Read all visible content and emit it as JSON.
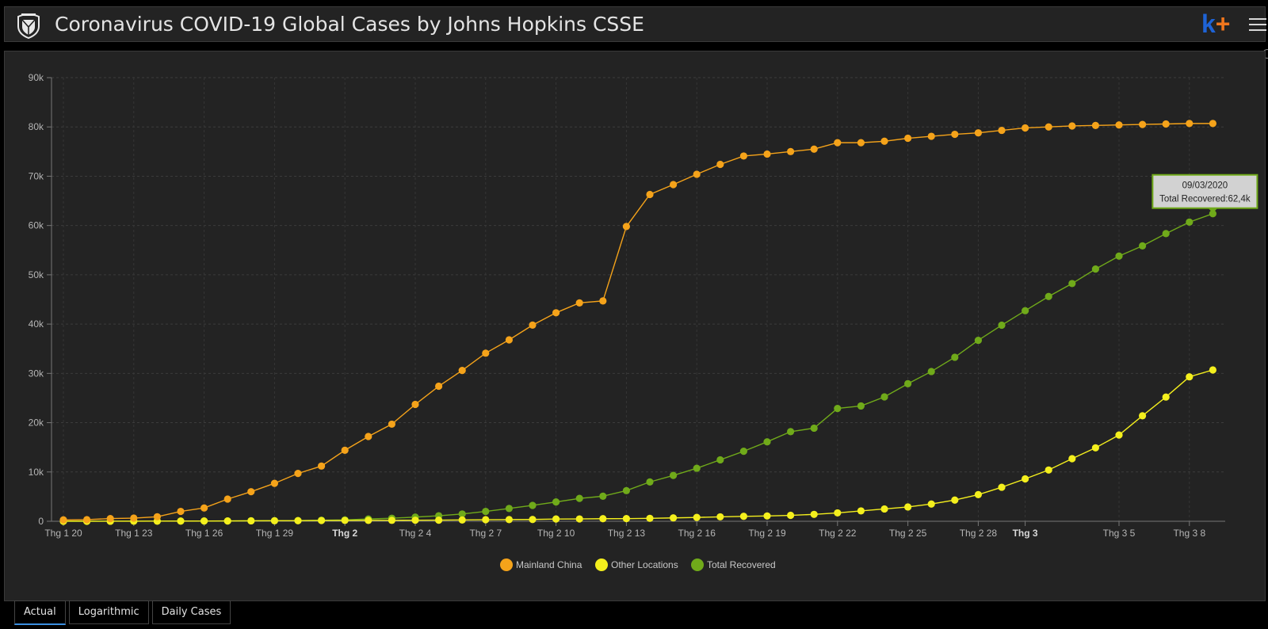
{
  "header": {
    "title": "Coronavirus COVID-19 Global Cases by Johns Hopkins CSSE",
    "brand_k": "k",
    "brand_plus": "+"
  },
  "tabs": [
    {
      "label": "Actual",
      "active": true
    },
    {
      "label": "Logarithmic",
      "active": false
    },
    {
      "label": "Daily Cases",
      "active": false
    }
  ],
  "tooltip": {
    "date": "09/03/2020",
    "text": "Total Recovered:62,4k"
  },
  "colors": {
    "mainland_china": "#f5a31a",
    "other_locations": "#f4ef1d",
    "total_recovered": "#70aa1a",
    "background": "#232323"
  },
  "chart_data": {
    "type": "line",
    "title": "",
    "xlabel": "",
    "ylabel": "",
    "ylim": [
      0,
      90000
    ],
    "yticks": [
      0,
      10000,
      20000,
      30000,
      40000,
      50000,
      60000,
      70000,
      80000,
      90000
    ],
    "ytick_labels": [
      "0",
      "10k",
      "20k",
      "30k",
      "40k",
      "50k",
      "60k",
      "70k",
      "80k",
      "90k"
    ],
    "x": [
      "2020-01-20",
      "2020-01-21",
      "2020-01-22",
      "2020-01-23",
      "2020-01-24",
      "2020-01-25",
      "2020-01-26",
      "2020-01-27",
      "2020-01-28",
      "2020-01-29",
      "2020-01-30",
      "2020-01-31",
      "2020-02-01",
      "2020-02-02",
      "2020-02-03",
      "2020-02-04",
      "2020-02-05",
      "2020-02-06",
      "2020-02-07",
      "2020-02-08",
      "2020-02-09",
      "2020-02-10",
      "2020-02-11",
      "2020-02-12",
      "2020-02-13",
      "2020-02-14",
      "2020-02-15",
      "2020-02-16",
      "2020-02-17",
      "2020-02-18",
      "2020-02-19",
      "2020-02-20",
      "2020-02-21",
      "2020-02-22",
      "2020-02-23",
      "2020-02-24",
      "2020-02-25",
      "2020-02-26",
      "2020-02-27",
      "2020-02-28",
      "2020-02-29",
      "2020-03-01",
      "2020-03-02",
      "2020-03-03",
      "2020-03-04",
      "2020-03-05",
      "2020-03-06",
      "2020-03-07",
      "2020-03-08",
      "2020-03-09"
    ],
    "xticks": [
      {
        "index": 0,
        "label": "Thg 1 20",
        "bold": false
      },
      {
        "index": 3,
        "label": "Thg 1 23",
        "bold": false
      },
      {
        "index": 6,
        "label": "Thg 1 26",
        "bold": false
      },
      {
        "index": 9,
        "label": "Thg 1 29",
        "bold": false
      },
      {
        "index": 12,
        "label": "Thg 2",
        "bold": true
      },
      {
        "index": 15,
        "label": "Thg 2 4",
        "bold": false
      },
      {
        "index": 18,
        "label": "Thg 2 7",
        "bold": false
      },
      {
        "index": 21,
        "label": "Thg 2 10",
        "bold": false
      },
      {
        "index": 24,
        "label": "Thg 2 13",
        "bold": false
      },
      {
        "index": 27,
        "label": "Thg 2 16",
        "bold": false
      },
      {
        "index": 30,
        "label": "Thg 2 19",
        "bold": false
      },
      {
        "index": 33,
        "label": "Thg 2 22",
        "bold": false
      },
      {
        "index": 36,
        "label": "Thg 2 25",
        "bold": false
      },
      {
        "index": 39,
        "label": "Thg 2 28",
        "bold": false
      },
      {
        "index": 41,
        "label": "Thg 3",
        "bold": true
      },
      {
        "index": 45,
        "label": "Thg 3 5",
        "bold": false
      },
      {
        "index": 48,
        "label": "Thg 3 8",
        "bold": false
      }
    ],
    "grid": true,
    "legend_position": "bottom-center",
    "series": [
      {
        "name": "Mainland China",
        "color": "#f5a31a",
        "values": [
          278,
          326,
          547,
          639,
          916,
          2000,
          2700,
          4500,
          6000,
          7700,
          9700,
          11200,
          14400,
          17200,
          19700,
          23700,
          27400,
          30600,
          34100,
          36800,
          39800,
          42300,
          44300,
          44700,
          59800,
          66300,
          68300,
          70400,
          72400,
          74100,
          74500,
          75000,
          75500,
          76800,
          76800,
          77100,
          77700,
          78100,
          78500,
          78800,
          79300,
          79800,
          80000,
          80200,
          80300,
          80400,
          80500,
          80600,
          80700,
          80700
        ]
      },
      {
        "name": "Other Locations",
        "color": "#f4ef1d",
        "values": [
          4,
          6,
          8,
          14,
          25,
          40,
          57,
          64,
          87,
          105,
          118,
          153,
          173,
          183,
          188,
          212,
          227,
          265,
          317,
          343,
          361,
          457,
          476,
          523,
          538,
          595,
          685,
          780,
          896,
          999,
          1076,
          1200,
          1400,
          1700,
          2100,
          2500,
          2900,
          3500,
          4300,
          5400,
          6900,
          8600,
          10400,
          12700,
          14900,
          17500,
          21400,
          25200,
          29300,
          30700
        ]
      },
      {
        "name": "Total Recovered",
        "color": "#70aa1a",
        "values": [
          0,
          0,
          28,
          30,
          36,
          39,
          49,
          58,
          101,
          120,
          135,
          214,
          275,
          463,
          614,
          843,
          1115,
          1477,
          1999,
          2596,
          3219,
          3918,
          4636,
          5082,
          6217,
          7977,
          9298,
          10755,
          12462,
          14206,
          16121,
          18177,
          18890,
          22886,
          23394,
          25227,
          27905,
          30384,
          33277,
          36711,
          39782,
          42716,
          45602,
          48228,
          51170,
          53796,
          55865,
          58359,
          60694,
          62400
        ]
      }
    ]
  }
}
